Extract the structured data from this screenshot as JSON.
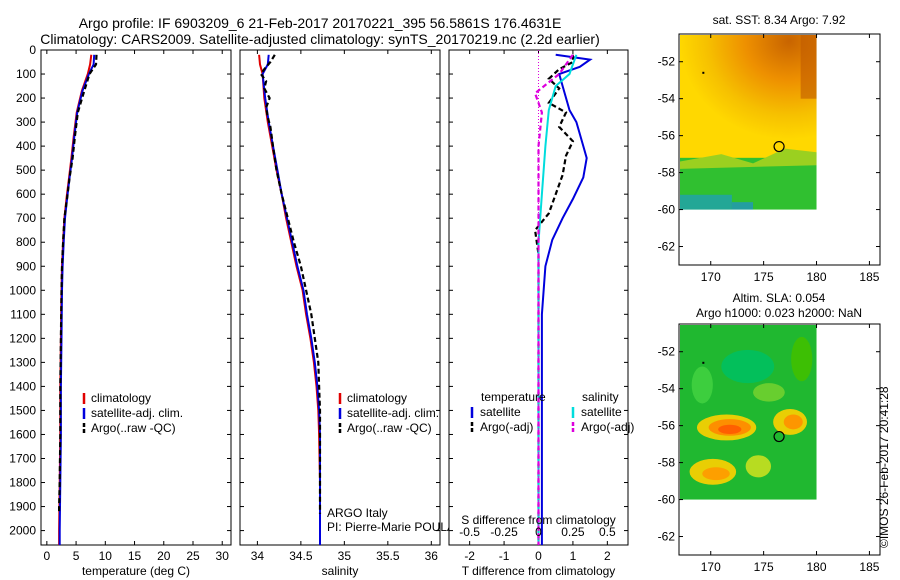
{
  "title_line1": "Argo profile: IF 6903209_6 21-Feb-2017 20170221_395 56.5861S 176.4631E",
  "title_line2": "Climatology: CARS2009. Satellite-adjusted climatology: synTS_20170219.nc (2.2d earlier)",
  "credit": "©IMOS 26-Feb-2017 20:41:28",
  "colors": {
    "climatology": "#e00000",
    "satellite": "#0000dd",
    "argo": "#000000",
    "satellite_s": "#00dddd",
    "argo_s": "#dd00dd"
  },
  "chart_data": [
    {
      "type": "line",
      "name": "temperature_panel",
      "xlabel": "temperature (deg C)",
      "xlim": [
        -1,
        31.5
      ],
      "ylim": [
        2060,
        0
      ],
      "xticks": [
        0,
        5,
        10,
        15,
        20,
        25,
        30
      ],
      "yticks": [
        0,
        100,
        200,
        300,
        400,
        500,
        600,
        700,
        800,
        900,
        1000,
        1100,
        1200,
        1300,
        1400,
        1500,
        1600,
        1700,
        1800,
        1900,
        2000
      ],
      "legend": [
        "climatology",
        "satellite-adj. clim.",
        "Argo(..raw -QC)"
      ],
      "series": [
        {
          "name": "climatology",
          "color": "#e00000",
          "points": [
            [
              7.6,
              20
            ],
            [
              7.4,
              60
            ],
            [
              7.0,
              100
            ],
            [
              6.0,
              170
            ],
            [
              5.1,
              260
            ],
            [
              4.6,
              360
            ],
            [
              4.2,
              450
            ],
            [
              3.8,
              530
            ],
            [
              3.4,
              610
            ],
            [
              3.0,
              700
            ],
            [
              2.8,
              790
            ],
            [
              2.6,
              900
            ],
            [
              2.5,
              1000
            ],
            [
              2.4,
              1200
            ],
            [
              2.3,
              1400
            ],
            [
              2.3,
              1600
            ],
            [
              2.2,
              1800
            ],
            [
              2.1,
              2000
            ],
            [
              2.1,
              2060
            ]
          ]
        },
        {
          "name": "satellite-adj. clim.",
          "color": "#0000dd",
          "points": [
            [
              8.1,
              20
            ],
            [
              8.0,
              60
            ],
            [
              7.2,
              100
            ],
            [
              6.1,
              170
            ],
            [
              5.2,
              260
            ],
            [
              4.7,
              360
            ],
            [
              4.3,
              450
            ],
            [
              3.9,
              530
            ],
            [
              3.5,
              610
            ],
            [
              3.1,
              700
            ],
            [
              2.9,
              790
            ],
            [
              2.7,
              900
            ],
            [
              2.6,
              1000
            ],
            [
              2.5,
              1200
            ],
            [
              2.4,
              1400
            ],
            [
              2.4,
              1600
            ],
            [
              2.3,
              1800
            ],
            [
              2.2,
              2000
            ],
            [
              2.2,
              2060
            ]
          ]
        },
        {
          "name": "Argo(..raw -QC)",
          "color": "#000000",
          "points": [
            [
              8.5,
              20
            ],
            [
              8.4,
              60
            ],
            [
              7.3,
              100
            ],
            [
              6.4,
              170
            ],
            [
              5.3,
              260
            ],
            [
              4.8,
              360
            ],
            [
              4.4,
              450
            ],
            [
              3.9,
              530
            ],
            [
              3.5,
              610
            ],
            [
              3.0,
              700
            ],
            [
              2.8,
              790
            ],
            [
              2.6,
              900
            ],
            [
              2.5,
              1000
            ],
            [
              2.4,
              1200
            ],
            [
              2.3,
              1400
            ],
            [
              2.3,
              1600
            ],
            [
              2.2,
              1800
            ],
            [
              2.1,
              1900
            ],
            [
              2.1,
              1930
            ]
          ]
        }
      ]
    },
    {
      "type": "line",
      "name": "salinity_panel",
      "xlabel": "salinity",
      "xlim": [
        33.8,
        36.1
      ],
      "ylim": [
        2060,
        0
      ],
      "xticks": [
        34,
        34.5,
        35,
        35.5,
        36
      ],
      "legend": [
        "climatology",
        "satellite-adj. clim.",
        "Argo(..raw -QC)"
      ],
      "annotation": [
        "ARGO Italy",
        "PI: Pierre-Marie POULAIN"
      ],
      "series": [
        {
          "name": "climatology",
          "color": "#e00000",
          "points": [
            [
              34.02,
              20
            ],
            [
              34.03,
              60
            ],
            [
              34.06,
              100
            ],
            [
              34.08,
              200
            ],
            [
              34.12,
              300
            ],
            [
              34.17,
              400
            ],
            [
              34.22,
              500
            ],
            [
              34.28,
              600
            ],
            [
              34.33,
              700
            ],
            [
              34.39,
              800
            ],
            [
              34.45,
              900
            ],
            [
              34.52,
              1000
            ],
            [
              34.56,
              1100
            ],
            [
              34.61,
              1200
            ],
            [
              34.65,
              1300
            ],
            [
              34.68,
              1400
            ],
            [
              34.7,
              1500
            ],
            [
              34.71,
              1600
            ],
            [
              34.72,
              1800
            ],
            [
              34.72,
              2060
            ]
          ]
        },
        {
          "name": "satellite-adj. clim.",
          "color": "#0000dd",
          "points": [
            [
              34.13,
              20
            ],
            [
              34.12,
              60
            ],
            [
              34.06,
              100
            ],
            [
              34.09,
              200
            ],
            [
              34.13,
              300
            ],
            [
              34.18,
              400
            ],
            [
              34.23,
              500
            ],
            [
              34.28,
              600
            ],
            [
              34.34,
              700
            ],
            [
              34.4,
              800
            ],
            [
              34.46,
              900
            ],
            [
              34.53,
              1000
            ],
            [
              34.57,
              1100
            ],
            [
              34.62,
              1200
            ],
            [
              34.66,
              1300
            ],
            [
              34.69,
              1400
            ],
            [
              34.71,
              1500
            ],
            [
              34.72,
              1600
            ],
            [
              34.72,
              1800
            ],
            [
              34.72,
              2060
            ]
          ]
        },
        {
          "name": "Argo(..raw -QC)",
          "color": "#000000",
          "points": [
            [
              34.2,
              20
            ],
            [
              34.15,
              50
            ],
            [
              34.08,
              80
            ],
            [
              34.04,
              100
            ],
            [
              34.1,
              130
            ],
            [
              34.08,
              160
            ],
            [
              34.14,
              200
            ],
            [
              34.1,
              240
            ],
            [
              34.12,
              280
            ],
            [
              34.15,
              320
            ],
            [
              34.18,
              400
            ],
            [
              34.22,
              500
            ],
            [
              34.28,
              600
            ],
            [
              34.35,
              700
            ],
            [
              34.42,
              800
            ],
            [
              34.5,
              900
            ],
            [
              34.56,
              1000
            ],
            [
              34.62,
              1100
            ],
            [
              34.66,
              1200
            ],
            [
              34.7,
              1300
            ],
            [
              34.71,
              1400
            ],
            [
              34.72,
              1500
            ],
            [
              34.72,
              1600
            ],
            [
              34.72,
              1800
            ],
            [
              34.72,
              1930
            ]
          ]
        }
      ]
    },
    {
      "type": "line",
      "name": "difference_panel",
      "xlabel": "T difference from climatology",
      "xlabel_top": "S difference from climatology",
      "xlim": [
        -2.6,
        2.6
      ],
      "ylim": [
        2060,
        0
      ],
      "xticks": [
        -2,
        -1,
        0,
        1,
        2
      ],
      "xticks_s": [
        "-0.5",
        "-0.25",
        "0",
        "0.25",
        "0.5"
      ],
      "legend": {
        "temperature": [
          "satellite",
          "Argo(-adj)"
        ],
        "salinity": [
          "satellite",
          "Argo(-adj)"
        ]
      },
      "series": [
        {
          "name": "temperature satellite",
          "color": "#0000dd",
          "points": [
            [
              0.5,
              20
            ],
            [
              1.5,
              40
            ],
            [
              1.2,
              70
            ],
            [
              0.6,
              100
            ],
            [
              0.7,
              150
            ],
            [
              0.9,
              250
            ],
            [
              1.1,
              300
            ],
            [
              1.3,
              400
            ],
            [
              1.4,
              450
            ],
            [
              1.3,
              530
            ],
            [
              1.0,
              620
            ],
            [
              0.7,
              700
            ],
            [
              0.4,
              790
            ],
            [
              0.2,
              900
            ],
            [
              0.1,
              1100
            ],
            [
              0.1,
              1500
            ],
            [
              0.1,
              2000
            ],
            [
              0.1,
              2060
            ]
          ]
        },
        {
          "name": "temperature Argo(-adj)",
          "color": "#000000",
          "points": [
            [
              1.0,
              20
            ],
            [
              1.0,
              50
            ],
            [
              0.6,
              80
            ],
            [
              0.3,
              120
            ],
            [
              0.6,
              160
            ],
            [
              0.3,
              220
            ],
            [
              0.8,
              260
            ],
            [
              0.6,
              320
            ],
            [
              1.0,
              380
            ],
            [
              0.8,
              440
            ],
            [
              0.7,
              520
            ],
            [
              0.5,
              600
            ],
            [
              0.3,
              680
            ],
            [
              -0.1,
              750
            ],
            [
              0.0,
              850
            ],
            [
              0.0,
              1000
            ],
            [
              0.0,
              1500
            ],
            [
              0.0,
              2000
            ],
            [
              0.0,
              2060
            ]
          ]
        },
        {
          "name": "salinity satellite",
          "color": "#00dddd",
          "points": [
            [
              1.1,
              20
            ],
            [
              1.0,
              60
            ],
            [
              0.9,
              100
            ],
            [
              0.5,
              150
            ],
            [
              0.3,
              250
            ],
            [
              0.2,
              400
            ],
            [
              0.1,
              600
            ],
            [
              0.0,
              800
            ],
            [
              0.0,
              1200
            ],
            [
              0.0,
              1800
            ],
            [
              0.0,
              2060
            ]
          ]
        },
        {
          "name": "salinity Argo(-adj)",
          "color": "#dd00dd",
          "points": [
            [
              1.0,
              20
            ],
            [
              0.8,
              60
            ],
            [
              0.6,
              100
            ],
            [
              -0.1,
              180
            ],
            [
              0.1,
              260
            ],
            [
              0.0,
              400
            ],
            [
              0.0,
              700
            ],
            [
              0.0,
              1000
            ],
            [
              0.0,
              1500
            ],
            [
              0.0,
              2000
            ],
            [
              0.0,
              2060
            ]
          ]
        }
      ]
    },
    {
      "type": "heatmap",
      "name": "sst_map",
      "title": "sat. SST: 8.34 Argo: 7.92",
      "xlim": [
        167,
        186
      ],
      "ylim": [
        -63,
        -50.5
      ],
      "xticks": [
        170,
        175,
        180,
        185
      ],
      "yticks": [
        -52,
        -54,
        -56,
        -58,
        -60,
        -62
      ],
      "argo_position": [
        176.46,
        -56.59
      ]
    },
    {
      "type": "heatmap",
      "name": "sla_map",
      "title_lines": [
        "Altim. SLA: 0.054",
        "Argo h1000: 0.023 h2000: NaN"
      ],
      "xlim": [
        167,
        186
      ],
      "ylim": [
        -63,
        -50.5
      ],
      "xticks": [
        170,
        175,
        180,
        185
      ],
      "yticks": [
        -52,
        -54,
        -56,
        -58,
        -60,
        -62
      ],
      "argo_position": [
        176.46,
        -56.59
      ]
    }
  ]
}
